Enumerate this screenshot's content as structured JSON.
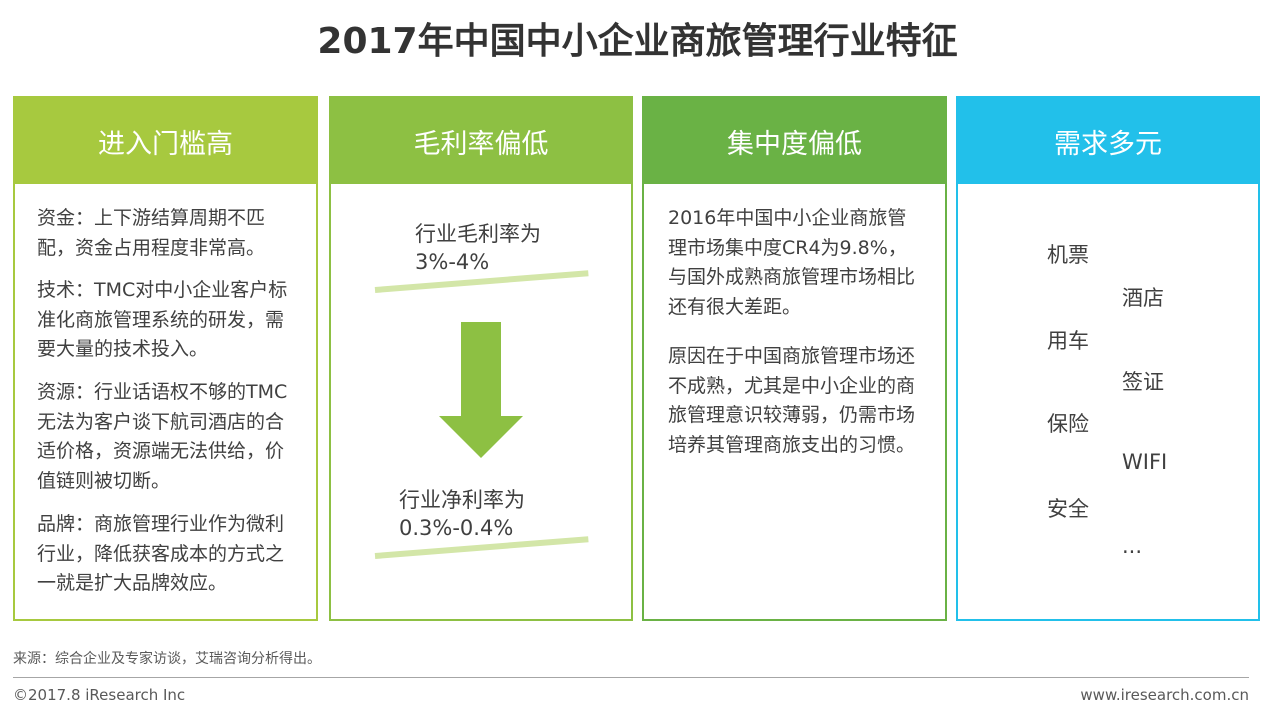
{
  "title": "2017年中国中小企业商旅管理行业特征",
  "cards": {
    "barrier": {
      "heading": "进入门槛高",
      "paragraphs": [
        "资金：上下游结算周期不匹配，资金占用程度非常高。",
        "技术：TMC对中小企业客户标准化商旅管理系统的研发，需要大量的技术投入。",
        "资源：行业话语权不够的TMC无法为客户谈下航司酒店的合适价格，资源端无法供给，价值链则被切断。",
        "品牌：商旅管理行业作为微利行业，降低获客成本的方式之一就是扩大品牌效应。"
      ]
    },
    "margin": {
      "heading": "毛利率偏低",
      "gross_label": "行业毛利率为",
      "gross_value": "3%-4%",
      "net_label": "行业净利率为",
      "net_value": "0.3%-0.4%"
    },
    "concentration": {
      "heading": "集中度偏低",
      "paragraphs": [
        "2016年中国中小企业商旅管理市场集中度CR4为9.8%，与国外成熟商旅管理市场相比还有很大差距。",
        "原因在于中国商旅管理市场还不成熟，尤其是中小企业的商旅管理意识较薄弱，仍需市场培养其管理商旅支出的习惯。"
      ]
    },
    "demand": {
      "heading": "需求多元",
      "items": [
        "机票",
        "酒店",
        "用车",
        "签证",
        "保险",
        "WIFI",
        "安全",
        "..."
      ]
    }
  },
  "footer": {
    "source": "来源：综合企业及专家访谈，艾瑞咨询分析得出。",
    "copyright": "©2017.8 iResearch Inc",
    "website": "www.iresearch.com.cn"
  },
  "colors": {
    "card1": "#a7c93f",
    "card2": "#8dc043",
    "card3": "#6ab245",
    "card4": "#22c0ea"
  }
}
